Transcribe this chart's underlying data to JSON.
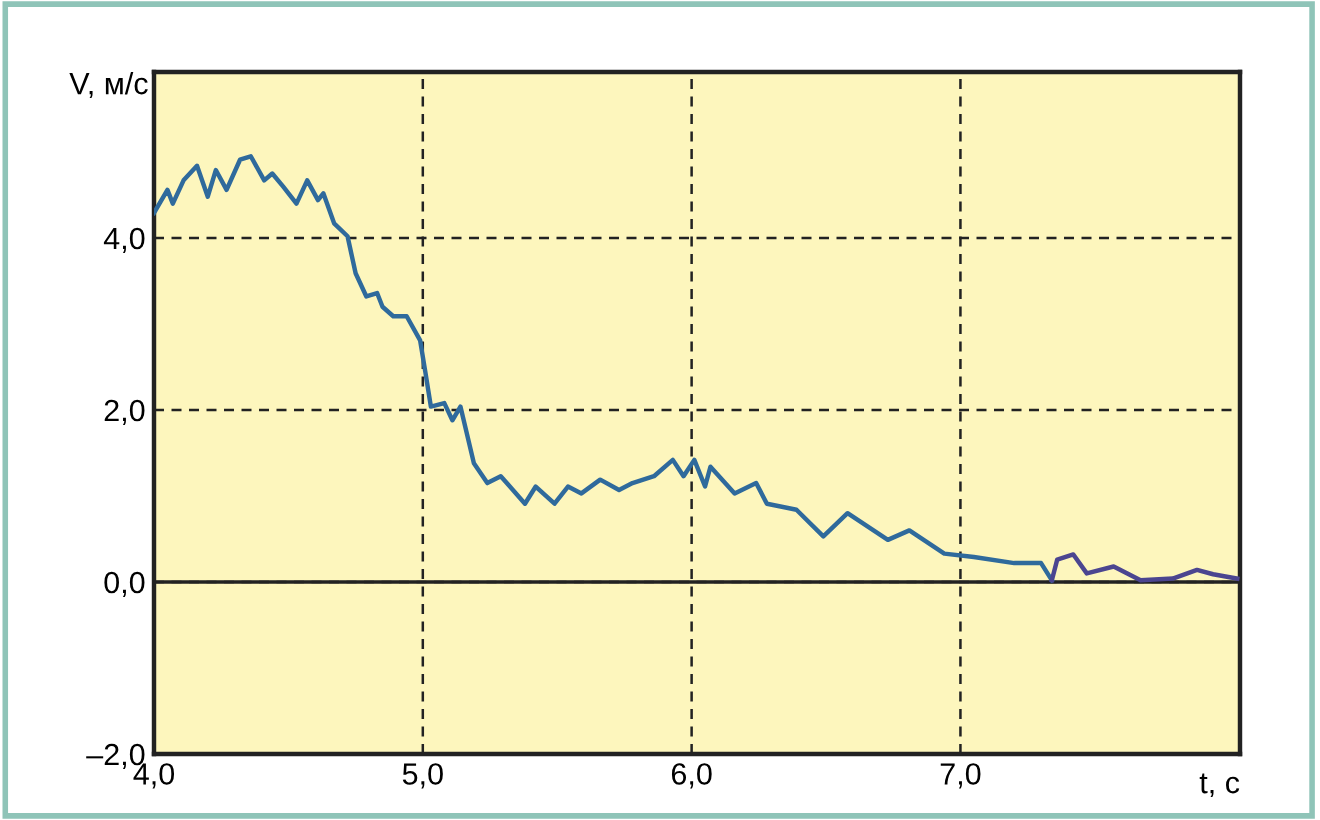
{
  "chart_data": {
    "type": "line",
    "xlabel": "t, с",
    "ylabel": "V, м/с",
    "xlim": [
      4.0,
      8.04
    ],
    "ylim": [
      -2.0,
      5.93
    ],
    "xticks": [
      {
        "value": 4,
        "label": "4,0"
      },
      {
        "value": 5,
        "label": "5,0"
      },
      {
        "value": 6,
        "label": "6,0"
      },
      {
        "value": 7,
        "label": "7,0"
      }
    ],
    "yticks": [
      {
        "value": -2,
        "label": "–2,0"
      },
      {
        "value": 0,
        "label": "0,0"
      },
      {
        "value": 2,
        "label": "2,0"
      },
      {
        "value": 4,
        "label": "4,0"
      }
    ],
    "grid": true,
    "legend": false,
    "marker": "none",
    "line_style": "solid",
    "ref_lines": [
      {
        "axis": "y",
        "value": 0,
        "color": "#222222",
        "line_style": "solid"
      }
    ],
    "series": [
      {
        "color": "#2f6a9c",
        "x": [
          4.0,
          4.05,
          4.07,
          4.11,
          4.16,
          4.2,
          4.23,
          4.27,
          4.32,
          4.36,
          4.41,
          4.44,
          4.48,
          4.53,
          4.57,
          4.61,
          4.63,
          4.67,
          4.72,
          4.75,
          4.79,
          4.83,
          4.85,
          4.89,
          4.94,
          4.99,
          5.01,
          5.03,
          5.08,
          5.11,
          5.14,
          5.19,
          5.24,
          5.29,
          5.38,
          5.42,
          5.49,
          5.54,
          5.59,
          5.66,
          5.73,
          5.78,
          5.86,
          5.93,
          5.97,
          6.01,
          6.05,
          6.07,
          6.16,
          6.24,
          6.28,
          6.39,
          6.49,
          6.58,
          6.73,
          6.81,
          6.94,
          7.05,
          7.2,
          7.3,
          7.34
        ],
        "values": [
          4.29,
          4.56,
          4.4,
          4.67,
          4.84,
          4.48,
          4.79,
          4.56,
          4.91,
          4.95,
          4.67,
          4.75,
          4.6,
          4.4,
          4.67,
          4.44,
          4.52,
          4.17,
          4.02,
          3.59,
          3.32,
          3.36,
          3.2,
          3.09,
          3.09,
          2.81,
          2.43,
          2.04,
          2.08,
          1.88,
          2.04,
          1.38,
          1.15,
          1.23,
          0.91,
          1.11,
          0.91,
          1.11,
          1.03,
          1.19,
          1.07,
          1.15,
          1.23,
          1.42,
          1.23,
          1.42,
          1.11,
          1.34,
          1.03,
          1.15,
          0.91,
          0.84,
          0.53,
          0.8,
          0.49,
          0.6,
          0.33,
          0.29,
          0.22,
          0.22,
          0.02
        ]
      },
      {
        "color": "#4b4590",
        "x": [
          7.34,
          7.36,
          7.42,
          7.47,
          7.57,
          7.67,
          7.79,
          7.88,
          7.94,
          8.03
        ],
        "values": [
          0.02,
          0.26,
          0.32,
          0.1,
          0.18,
          0.02,
          0.04,
          0.14,
          0.09,
          0.04
        ]
      }
    ]
  }
}
